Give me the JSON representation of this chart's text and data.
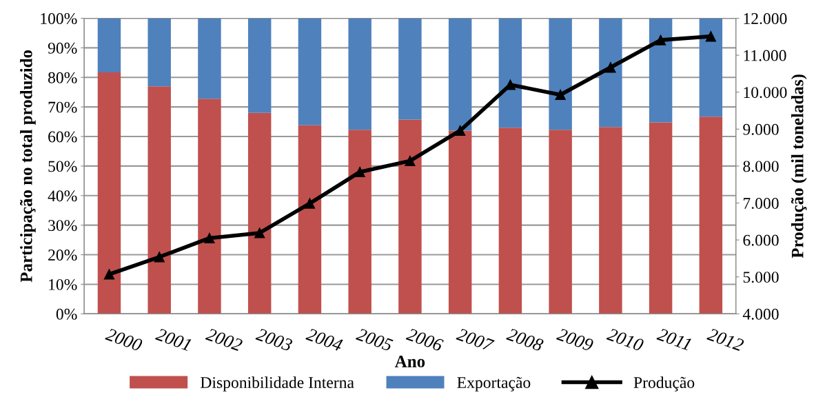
{
  "chart_data": {
    "type": "bar",
    "stacked": true,
    "xlabel": "Ano",
    "ylabel": "Participação no total produzido",
    "y2label": "Produção (mil toneladas)",
    "categories": [
      "2000",
      "2001",
      "2002",
      "2003",
      "2004",
      "2005",
      "2006",
      "2007",
      "2008",
      "2009",
      "2010",
      "2011",
      "2012"
    ],
    "series": [
      {
        "name": "Disponibilidade Interna",
        "color": "#c0504d",
        "values": [
          81.7,
          77,
          72.8,
          68,
          63.8,
          62.3,
          65.7,
          62,
          63,
          62.3,
          63.2,
          64.8,
          66.7
        ]
      },
      {
        "name": "Exportação",
        "color": "#4f81bd",
        "values": [
          18.3,
          23,
          27.2,
          32,
          36.2,
          37.7,
          34.3,
          38,
          37,
          37.7,
          36.8,
          35.2,
          33.3
        ]
      },
      {
        "name": "Produção",
        "type": "line",
        "axis": "y2",
        "color": "#000000",
        "marker": "triangle",
        "values": [
          5070,
          5540,
          6050,
          6190,
          6990,
          7840,
          8140,
          8960,
          10200,
          9930,
          10670,
          11410,
          11510
        ]
      }
    ],
    "ylim": [
      0,
      100
    ],
    "yticks": [
      {
        "value": 0,
        "label": "0%"
      },
      {
        "value": 10,
        "label": "10%"
      },
      {
        "value": 20,
        "label": "20%"
      },
      {
        "value": 30,
        "label": "30%"
      },
      {
        "value": 40,
        "label": "40%"
      },
      {
        "value": 50,
        "label": "50%"
      },
      {
        "value": 60,
        "label": "60%"
      },
      {
        "value": 70,
        "label": "70%"
      },
      {
        "value": 80,
        "label": "80%"
      },
      {
        "value": 90,
        "label": "90%"
      },
      {
        "value": 100,
        "label": "100%"
      }
    ],
    "y2lim": [
      4000,
      12000
    ],
    "y2ticks": [
      {
        "value": 4000,
        "label": "4.000"
      },
      {
        "value": 5000,
        "label": "5.000"
      },
      {
        "value": 6000,
        "label": "6.000"
      },
      {
        "value": 7000,
        "label": "7.000"
      },
      {
        "value": 8000,
        "label": "8.000"
      },
      {
        "value": 9000,
        "label": "9.000"
      },
      {
        "value": 10000,
        "label": "10.000"
      },
      {
        "value": 11000,
        "label": "11.000"
      },
      {
        "value": 12000,
        "label": "12.000"
      }
    ],
    "grid": "y",
    "legend": "bottom"
  }
}
